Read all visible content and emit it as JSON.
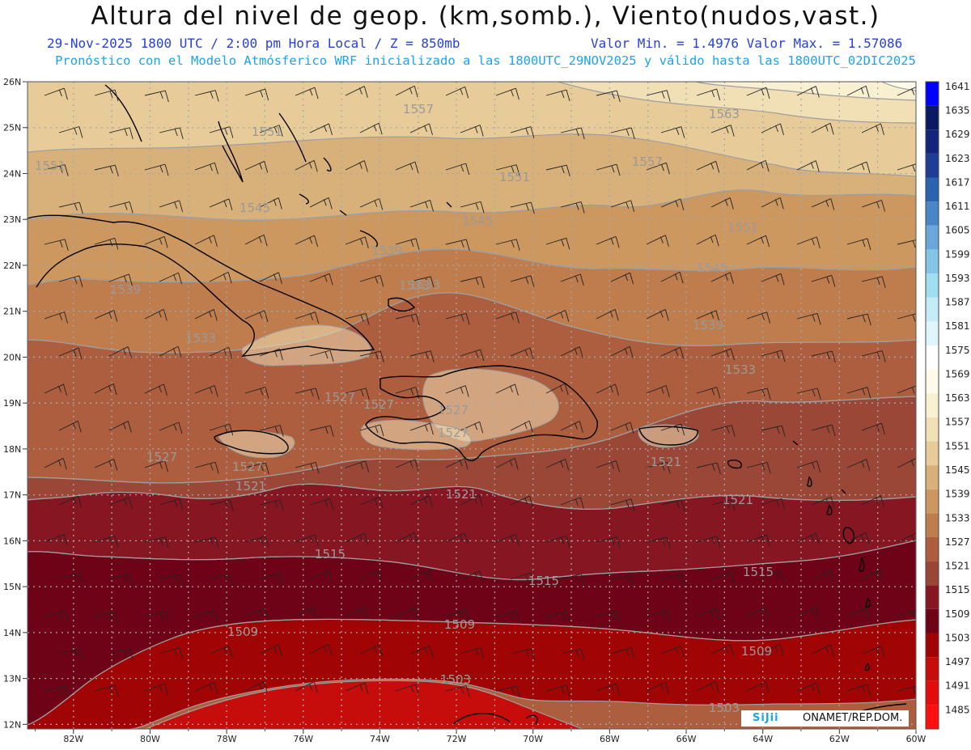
{
  "title": "Altura del nivel de geop. (km,somb.), Viento(nudos,vast.)",
  "subtitle_left": "29-Nov-2025  1800 UTC / 2:00 pm Hora Local / Z = 850mb",
  "subtitle_right": "Valor Min. = 1.4976  Valor Max. = 1.57086",
  "subtitle2": "Pronóstico con el Modelo Atmósferico WRF inicializado a las 1800UTC_29NOV2025 y válido hasta las  1800UTC_02DIC2025",
  "credits": {
    "sigii": "SiJii",
    "onamet": "ONAMET/REP.DOM."
  },
  "lon_labels": [
    "82W",
    "80W",
    "78W",
    "76W",
    "74W",
    "72W",
    "70W",
    "68W",
    "66W",
    "64W",
    "62W",
    "60W"
  ],
  "lat_labels": [
    "26N",
    "25N",
    "24N",
    "23N",
    "22N",
    "21N",
    "20N",
    "19N",
    "18N",
    "17N",
    "16N",
    "15N",
    "14N",
    "13N",
    "12N"
  ],
  "extent": {
    "lon_min": -83.2,
    "lon_max": -60.0,
    "lat_min": 11.9,
    "lat_max": 26.0
  },
  "colorbar": {
    "levels": [
      1485,
      1491,
      1497,
      1503,
      1509,
      1515,
      1521,
      1527,
      1533,
      1539,
      1545,
      1551,
      1557,
      1563,
      1569,
      1575,
      1581,
      1587,
      1593,
      1599,
      1605,
      1611,
      1617,
      1623,
      1629,
      1635,
      1641
    ],
    "colors": [
      "#fe1010",
      "#e50c0c",
      "#c70c0c",
      "#a10404",
      "#6e0318",
      "#861722",
      "#9b4737",
      "#ad5e3e",
      "#bf7c4c",
      "#cd9760",
      "#d8b07a",
      "#e7cc99",
      "#f1e0b6",
      "#f9f0d2",
      "#fffbe8",
      "#ffffff",
      "#dff5fb",
      "#c3ecf6",
      "#a2def2",
      "#85c5e5",
      "#6aa6d8",
      "#4a86c6",
      "#2d62b1",
      "#1e3d97",
      "#14247a",
      "#0b1a60",
      "#0000ff"
    ]
  },
  "contour_labels": [
    "1557",
    "1563",
    "1551",
    "1551",
    "1557",
    "1551",
    "1545",
    "1545",
    "1551",
    "1539",
    "1533",
    "1545",
    "1539",
    "1539",
    "1533",
    "1533",
    "1527",
    "1527",
    "1527",
    "1527",
    "1521",
    "1521",
    "1521",
    "1521",
    "1515",
    "1515",
    "1515",
    "1509",
    "1509",
    "1509",
    "1503",
    "1503",
    "1533",
    "1527",
    "1527"
  ]
}
